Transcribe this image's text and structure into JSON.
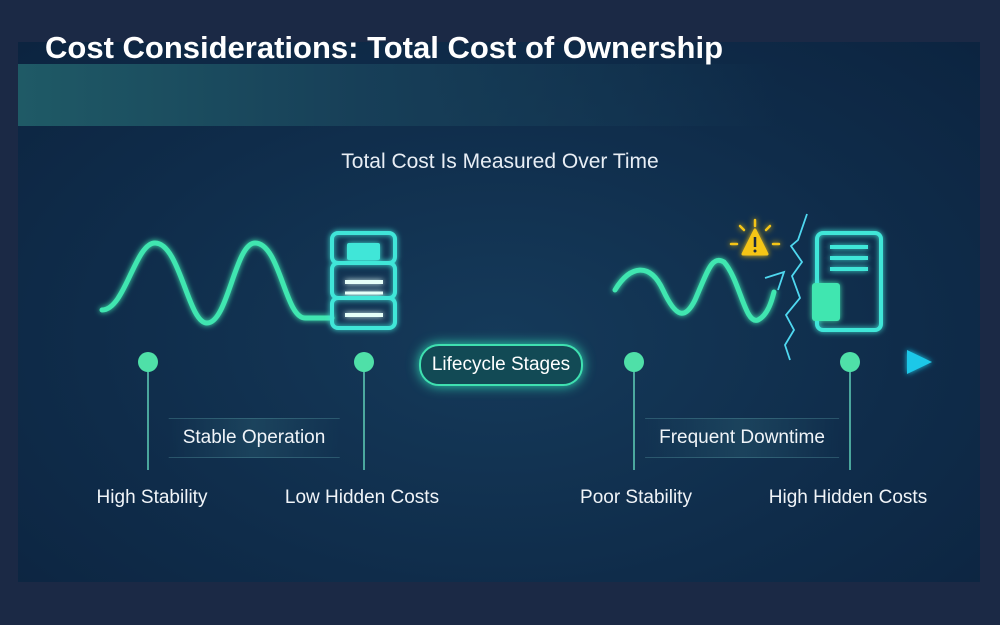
{
  "title": "Cost Considerations: Total Cost of Ownership",
  "subtitle": "Total Cost Is Measured Over Time",
  "timeline": {
    "center_label": "Lifecycle Stages",
    "segments": [
      {
        "label": "Stable Operation",
        "state": "stable"
      },
      {
        "label": "Frequent Downtime",
        "state": "unstable"
      }
    ],
    "milestones": [
      "High Stability",
      "Low Hidden Costs",
      "Poor Stability",
      "High Hidden Costs"
    ]
  },
  "colors": {
    "background": "#0f2c4a",
    "accent_green": "#3fe6a8",
    "accent_cyan": "#22d3e6",
    "warning": "#f5c518"
  },
  "icons": [
    "server-icon",
    "document-icon",
    "warning-icon",
    "crack-icon",
    "arrow-right-icon"
  ]
}
